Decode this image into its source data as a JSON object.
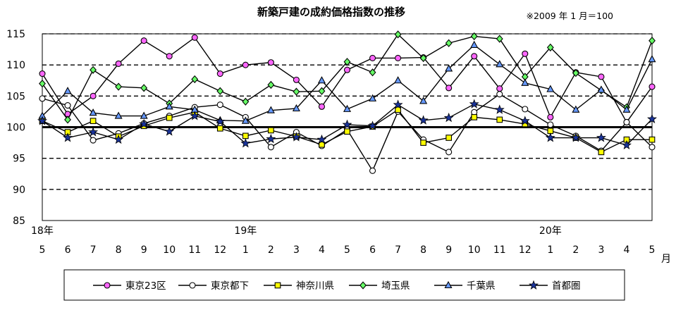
{
  "chart_data": {
    "type": "line",
    "title": "新築戸建の成約価格指数の推移",
    "note": "※2009 年 1 月＝100",
    "ylim": [
      85,
      115
    ],
    "yticks": [
      "85",
      "90",
      "95",
      "100",
      "105",
      "110",
      "115"
    ],
    "x": [
      "5",
      "6",
      "7",
      "8",
      "9",
      "10",
      "11",
      "12",
      "1",
      "2",
      "3",
      "4",
      "5",
      "6",
      "7",
      "8",
      "9",
      "10",
      "11",
      "12",
      "1",
      "2",
      "3",
      "4",
      "5"
    ],
    "year_labels": [
      {
        "index": 0,
        "text": "18年"
      },
      {
        "index": 8,
        "text": "19年"
      },
      {
        "index": 20,
        "text": "20年"
      }
    ],
    "month_unit": "月",
    "grid": "dashed horizontal lines at 90, 95, 105, 110, 115; solid baseline at 100",
    "legend_position": "bottom",
    "series": [
      {
        "name": "東京23区",
        "marker": "circle",
        "fill": "#ff66ff",
        "values": [
          108.6,
          102.1,
          105.0,
          110.2,
          113.9,
          111.4,
          114.4,
          108.6,
          110.0,
          110.4,
          107.6,
          103.3,
          109.2,
          111.1,
          111.1,
          111.2,
          106.3,
          111.4,
          106.2,
          111.8,
          101.6,
          108.8,
          108.1,
          100.8,
          106.5
        ]
      },
      {
        "name": "東京都下",
        "marker": "circle",
        "fill": "#ffffff",
        "values": [
          104.6,
          103.5,
          97.9,
          99.0,
          100.6,
          101.8,
          103.2,
          103.6,
          101.6,
          96.8,
          99.2,
          97.0,
          99.6,
          93.0,
          102.5,
          98.0,
          96.0,
          102.4,
          105.3,
          102.9,
          100.4,
          98.6,
          96.2,
          100.8,
          96.8
        ]
      },
      {
        "name": "神奈川県",
        "marker": "square",
        "fill": "#ffff00",
        "values": [
          101.0,
          99.2,
          101.0,
          98.5,
          100.2,
          101.5,
          102.4,
          99.8,
          98.6,
          99.5,
          98.5,
          97.2,
          99.3,
          100.1,
          102.8,
          97.5,
          98.3,
          101.6,
          101.2,
          100.5,
          99.4,
          98.3,
          96.0,
          98.0,
          98.0
        ]
      },
      {
        "name": "埼玉県",
        "marker": "diamond",
        "fill": "#66ff66",
        "values": [
          107.0,
          101.2,
          109.2,
          106.5,
          106.3,
          103.8,
          107.7,
          105.8,
          104.1,
          106.8,
          105.7,
          105.8,
          110.5,
          108.8,
          114.9,
          111.1,
          113.5,
          114.6,
          114.2,
          108.1,
          112.8,
          108.7,
          105.9,
          103.2,
          113.9
        ]
      },
      {
        "name": "千葉県",
        "marker": "triangle",
        "fill": "#6699ff",
        "values": [
          101.8,
          105.8,
          102.3,
          101.8,
          101.8,
          103.3,
          102.8,
          101.1,
          101.0,
          102.7,
          103.0,
          107.5,
          102.9,
          104.6,
          107.5,
          104.2,
          109.4,
          113.2,
          110.1,
          107.1,
          106.1,
          102.8,
          106.0,
          102.8,
          110.9
        ]
      },
      {
        "name": "首都圏",
        "marker": "star",
        "fill": "#1a3399",
        "values": [
          101.0,
          98.3,
          99.2,
          98.0,
          100.5,
          99.3,
          101.8,
          100.9,
          97.4,
          98.1,
          98.4,
          98.0,
          100.4,
          100.2,
          103.6,
          101.1,
          101.5,
          103.7,
          102.8,
          101.0,
          98.3,
          98.3,
          98.3,
          97.1,
          101.3
        ]
      }
    ]
  }
}
